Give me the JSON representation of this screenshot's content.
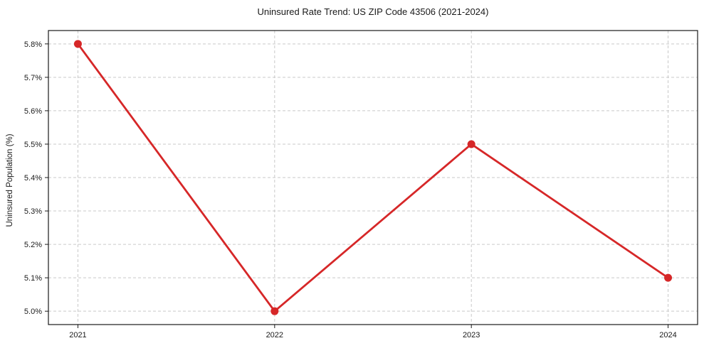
{
  "chart_data": {
    "type": "line",
    "title": "Uninsured Rate Trend: US ZIP Code 43506 (2021-2024)",
    "xlabel": "",
    "ylabel": "Uninsured Population (%)",
    "x": [
      2021,
      2022,
      2023,
      2024
    ],
    "series": [
      {
        "name": "Uninsured Rate",
        "values": [
          5.8,
          5.0,
          5.5,
          5.1
        ]
      }
    ],
    "xlim": [
      2020.85,
      2024.15
    ],
    "ylim": [
      4.96,
      5.84
    ],
    "xticks": {
      "values": [
        2021,
        2022,
        2023,
        2024
      ],
      "labels": [
        "2021",
        "2022",
        "2023",
        "2024"
      ]
    },
    "yticks": {
      "values": [
        5.0,
        5.1,
        5.2,
        5.3,
        5.4,
        5.5,
        5.6,
        5.7,
        5.8
      ],
      "labels": [
        "5.0%",
        "5.1%",
        "5.2%",
        "5.3%",
        "5.4%",
        "5.5%",
        "5.6%",
        "5.7%",
        "5.8%"
      ]
    },
    "grid": true,
    "grid_style": "dashed",
    "legend": "none",
    "colors": {
      "line": "#d62728",
      "marker": "#d62728",
      "grid": "#c9c9c9",
      "spine": "#1a1a1a",
      "tick": "#1a1a1a",
      "text": "#1a1a1a",
      "background": "#ffffff"
    }
  }
}
